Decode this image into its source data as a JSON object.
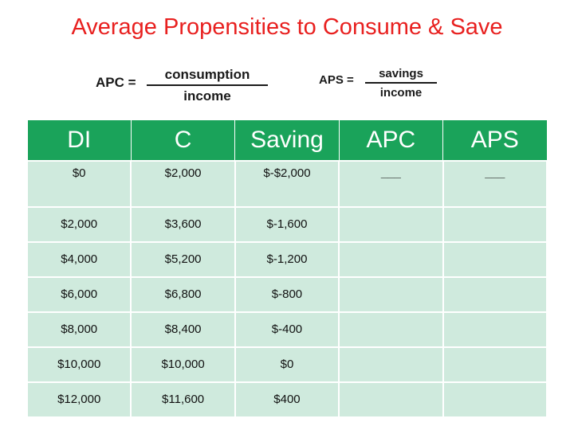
{
  "title": "Average Propensities to Consume & Save",
  "formulas": {
    "apc": {
      "lhs": "APC =",
      "numerator": "consumption",
      "denominator": "income"
    },
    "aps": {
      "lhs": "APS =",
      "numerator": "savings",
      "denominator": "income"
    }
  },
  "table": {
    "headers": [
      "DI",
      "C",
      "Saving",
      "APC",
      "APS"
    ],
    "rows": [
      [
        "$0",
        "$2,000",
        "$-$2,000",
        "___",
        "___"
      ],
      [
        "$2,000",
        "$3,600",
        "$-1,600",
        "",
        ""
      ],
      [
        "$4,000",
        "$5,200",
        "$-1,200",
        "",
        ""
      ],
      [
        "$6,000",
        "$6,800",
        "$-800",
        "",
        ""
      ],
      [
        "$8,000",
        "$8,400",
        "$-400",
        "",
        ""
      ],
      [
        "$10,000",
        "$10,000",
        "$0",
        "",
        ""
      ],
      [
        "$12,000",
        "$11,600",
        "$400",
        "",
        ""
      ]
    ]
  },
  "colors": {
    "title": "#e8201f",
    "header_bg": "#1aa35a",
    "cell_bg": "#cfeadd"
  }
}
